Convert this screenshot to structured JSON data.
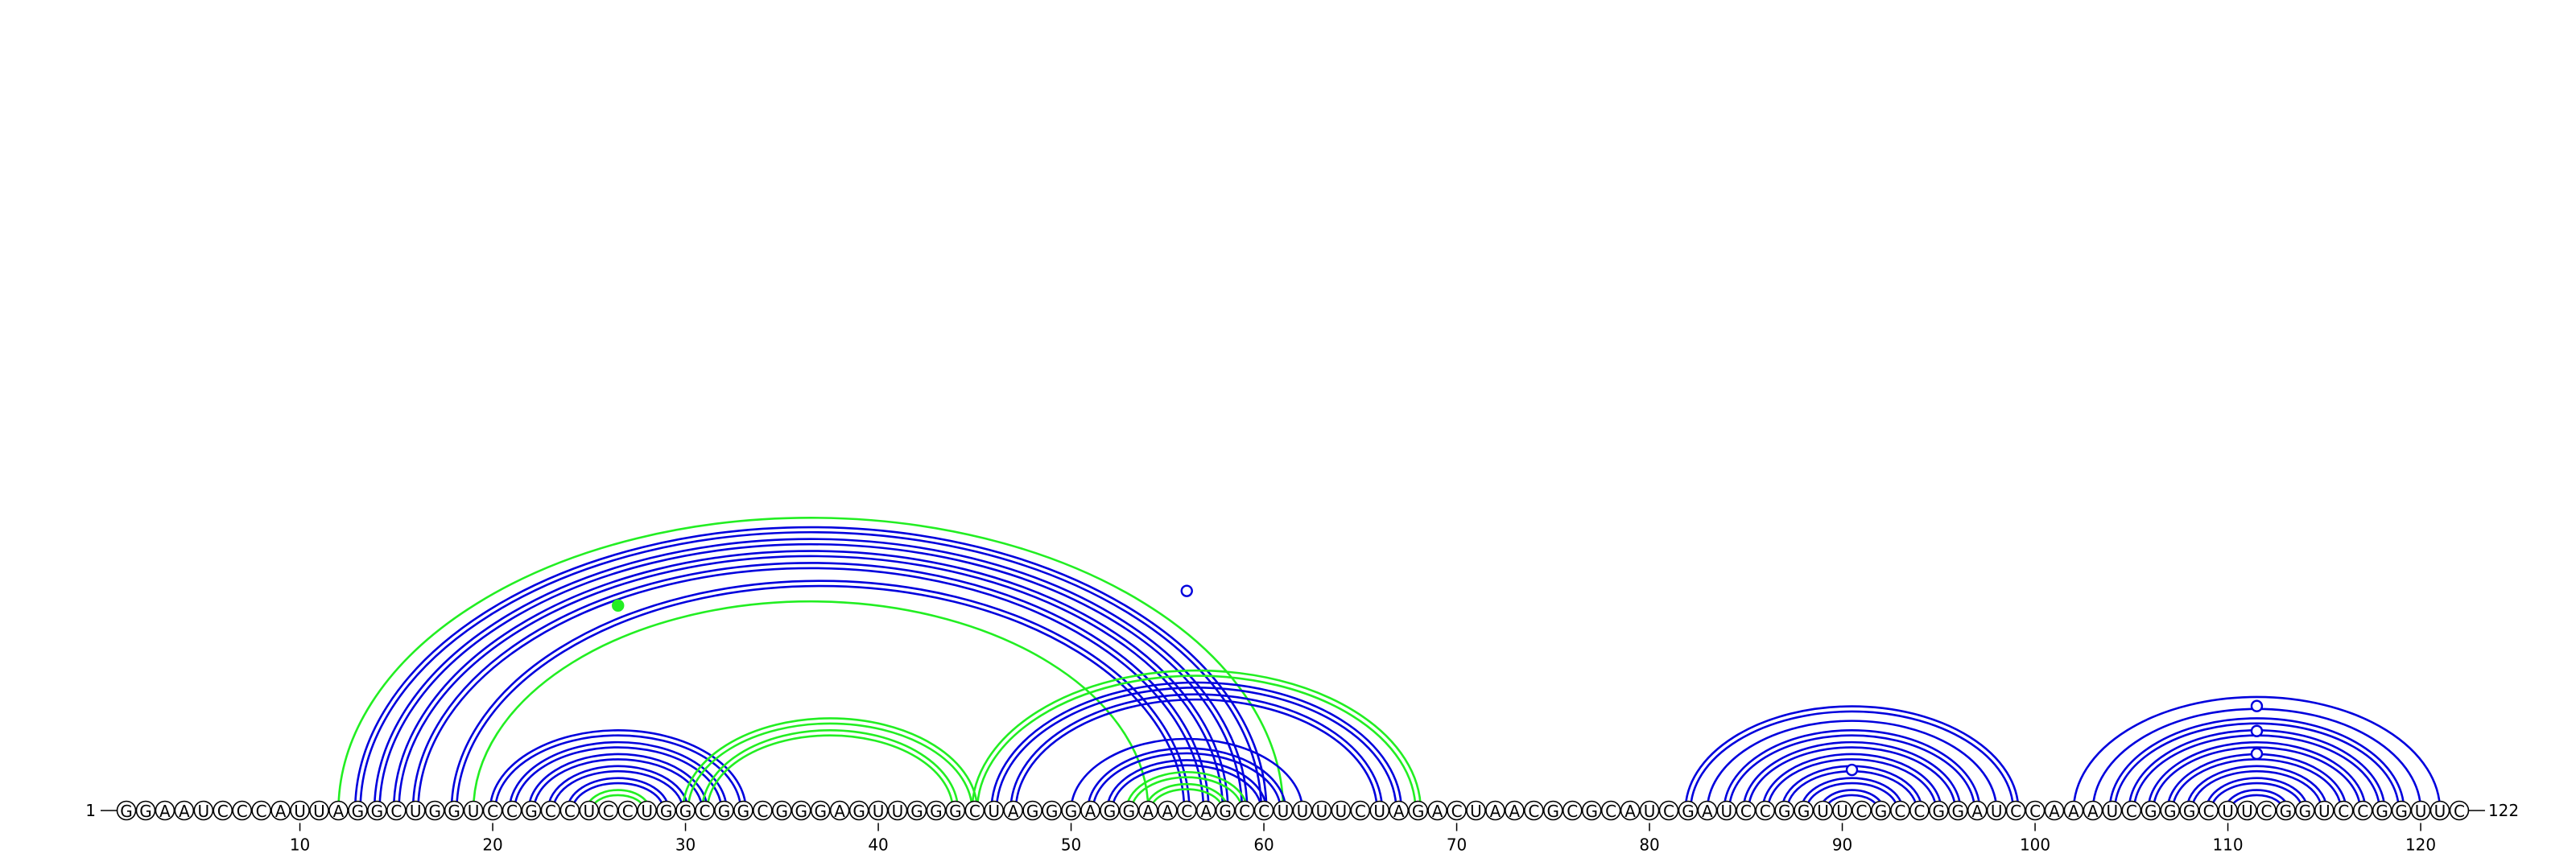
{
  "chart_data": {
    "type": "arc-diagram",
    "sequence": "GGAAUCCCAUUAGGCUGGUCCGCCUCCUGGCGGCGGGAGUUGGGCUAGGGAGGAACAGCCUUUUCUAGACUAACGCGCAUCGAUCCGGUUCGCCGGAUCCAAAUCGGGCUUCGGUCCGGUUC",
    "length": 122,
    "start_label": "1",
    "end_label": "122",
    "ticks": [
      10,
      20,
      30,
      40,
      50,
      60,
      70,
      80,
      90,
      100,
      110,
      120
    ],
    "colors": {
      "blue": "#0000dd",
      "green": "#22ee22",
      "backbone": "#000000"
    },
    "pairs": [
      [
        12,
        61,
        "green",
        1
      ],
      [
        13,
        60,
        "blue",
        2
      ],
      [
        14,
        59,
        "blue",
        2
      ],
      [
        15,
        58,
        "blue",
        2
      ],
      [
        16,
        57,
        "blue",
        2
      ],
      [
        18,
        56,
        "blue",
        2
      ],
      [
        19,
        54,
        "green",
        1
      ],
      [
        20,
        33,
        "blue",
        2
      ],
      [
        21,
        32,
        "blue",
        2
      ],
      [
        22,
        31,
        "blue",
        2
      ],
      [
        23,
        30,
        "blue",
        2
      ],
      [
        24,
        29,
        "blue",
        2
      ],
      [
        25,
        28,
        "green",
        2
      ],
      [
        30,
        45,
        "green",
        2
      ],
      [
        31,
        44,
        "green",
        2
      ],
      [
        45,
        68,
        "green",
        2
      ],
      [
        46,
        67,
        "blue",
        2
      ],
      [
        47,
        66,
        "blue",
        2
      ],
      [
        50,
        62,
        "blue",
        1
      ],
      [
        51,
        61,
        "blue",
        2
      ],
      [
        52,
        60,
        "blue",
        2
      ],
      [
        53,
        59,
        "green",
        2
      ],
      [
        54,
        58,
        "green",
        2
      ],
      [
        82,
        99,
        "blue",
        2
      ],
      [
        83,
        98,
        "blue",
        1
      ],
      [
        84,
        97,
        "blue",
        2
      ],
      [
        85,
        96,
        "blue",
        2
      ],
      [
        86,
        95,
        "blue",
        2
      ],
      [
        87,
        94,
        "blue",
        2
      ],
      [
        88,
        93,
        "blue",
        2
      ],
      [
        89,
        92,
        "blue",
        2
      ],
      [
        102,
        121,
        "blue",
        1
      ],
      [
        103,
        120,
        "blue",
        1
      ],
      [
        104,
        119,
        "blue",
        2
      ],
      [
        105,
        118,
        "blue",
        2
      ],
      [
        106,
        117,
        "blue",
        2
      ],
      [
        107,
        116,
        "blue",
        2
      ],
      [
        108,
        115,
        "blue",
        2
      ],
      [
        109,
        114,
        "blue",
        2
      ],
      [
        110,
        113,
        "blue",
        2
      ]
    ],
    "markers": [
      {
        "pos": 26.5,
        "level": 0.7,
        "color": "green",
        "filled": true
      },
      {
        "pos": 56,
        "level": 0.75,
        "color": "blue",
        "filled": false
      },
      {
        "pos": 90.5,
        "level": 0.4,
        "color": "blue",
        "filled": false
      },
      {
        "pos": 111.5,
        "level": 0.5,
        "color": "blue",
        "filled": false
      },
      {
        "pos": 111.5,
        "level": 0.7,
        "color": "blue",
        "filled": false
      },
      {
        "pos": 111.5,
        "level": 0.92,
        "color": "blue",
        "filled": false
      }
    ]
  }
}
